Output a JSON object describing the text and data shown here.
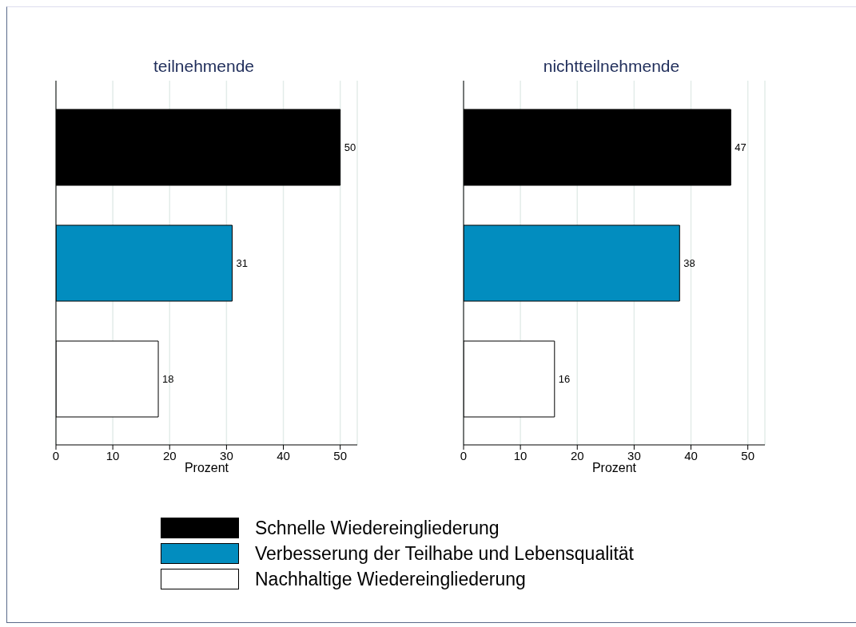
{
  "chart_data": [
    {
      "type": "bar",
      "orientation": "horizontal",
      "title": "teilnehmende",
      "xlabel": "Prozent",
      "categories": [
        null
      ],
      "series": [
        {
          "name": "Schnelle Wiedereingliederung",
          "color": "#000000",
          "values": [
            50
          ]
        },
        {
          "name": "Verbesserung der Teilhabe und Lebensqualität",
          "color": "#028dbf",
          "values": [
            31
          ]
        },
        {
          "name": "Nachhaltige Wiedereingliederung",
          "color": "#ffffff",
          "values": [
            18
          ]
        }
      ],
      "xlim": [
        0,
        53
      ],
      "xticks": [
        0,
        10,
        20,
        30,
        40,
        50
      ],
      "grid": "x",
      "data_labels": true,
      "tick_labels": "x",
      "legend": "bottom"
    },
    {
      "type": "bar",
      "orientation": "horizontal",
      "title": "nichtteilnehmende",
      "xlabel": "Prozent",
      "categories": [
        null
      ],
      "series": [
        {
          "color": "#000000",
          "values": [
            47
          ]
        },
        {
          "color": "#028dbf",
          "values": [
            38
          ]
        },
        {
          "color": "#ffffff",
          "values": [
            16
          ]
        }
      ],
      "xlim": [
        0,
        53
      ],
      "xticks": [
        0,
        10,
        20,
        30,
        40,
        50
      ],
      "grid": "x",
      "data_labels": true,
      "tick_labels": "x"
    }
  ]
}
